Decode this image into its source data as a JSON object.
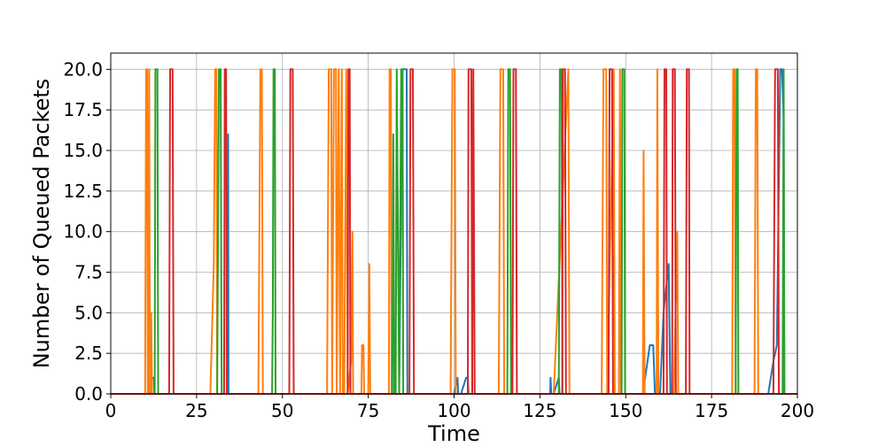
{
  "chart_data": {
    "type": "line",
    "title": "",
    "xlabel": "Time",
    "ylabel": "Number of Queued Packets",
    "xlim": [
      0,
      200
    ],
    "ylim": [
      0,
      21
    ],
    "xticks": [
      "0",
      "25",
      "50",
      "75",
      "100",
      "125",
      "150",
      "175",
      "200"
    ],
    "yticks": [
      "0.0",
      "2.5",
      "5.0",
      "7.5",
      "10.0",
      "12.5",
      "15.0",
      "17.5",
      "20.0"
    ],
    "grid": true,
    "legend": "none",
    "series": [
      {
        "color": "#1f77b4",
        "points": [
          [
            0,
            0
          ],
          [
            11.9,
            0
          ],
          [
            12,
            1
          ],
          [
            12.6,
            1
          ],
          [
            12.7,
            0
          ],
          [
            34,
            0
          ],
          [
            34.2,
            16
          ],
          [
            34.3,
            0
          ],
          [
            84,
            0
          ],
          [
            84.5,
            10
          ],
          [
            85,
            20
          ],
          [
            86.2,
            20
          ],
          [
            86.4,
            0
          ],
          [
            100,
            0
          ],
          [
            101,
            1
          ],
          [
            101.2,
            0
          ],
          [
            102,
            0
          ],
          [
            103.5,
            1
          ],
          [
            104,
            1
          ],
          [
            104.2,
            0
          ],
          [
            128,
            0
          ],
          [
            128.1,
            1
          ],
          [
            128.3,
            0
          ],
          [
            129,
            0
          ],
          [
            130.5,
            1
          ],
          [
            130.7,
            0
          ],
          [
            155,
            0
          ],
          [
            157,
            3
          ],
          [
            158,
            3
          ],
          [
            158.5,
            0
          ],
          [
            160,
            0
          ],
          [
            161,
            5
          ],
          [
            162.5,
            8
          ],
          [
            163,
            0
          ],
          [
            191.5,
            0
          ],
          [
            193,
            2
          ],
          [
            194,
            3
          ],
          [
            195,
            20
          ],
          [
            195.5,
            20
          ],
          [
            196,
            17
          ],
          [
            196.2,
            0
          ],
          [
            200,
            0
          ]
        ]
      },
      {
        "color": "#ff7f0e",
        "points": [
          [
            0,
            0
          ],
          [
            10,
            0
          ],
          [
            10.3,
            20
          ],
          [
            10.6,
            20
          ],
          [
            10.8,
            0
          ],
          [
            11,
            0
          ],
          [
            11.2,
            20
          ],
          [
            11.4,
            0
          ],
          [
            11.8,
            5
          ],
          [
            12,
            0
          ],
          [
            29,
            0
          ],
          [
            30,
            8
          ],
          [
            30.4,
            20
          ],
          [
            30.8,
            20
          ],
          [
            31,
            0
          ],
          [
            43,
            0
          ],
          [
            43.6,
            20
          ],
          [
            44,
            20
          ],
          [
            44.3,
            0
          ],
          [
            63,
            0
          ],
          [
            63.5,
            20
          ],
          [
            64.2,
            20
          ],
          [
            64.5,
            0
          ],
          [
            65,
            20
          ],
          [
            65.6,
            20
          ],
          [
            65.8,
            0
          ],
          [
            66.4,
            20
          ],
          [
            66.8,
            0
          ],
          [
            67.3,
            20
          ],
          [
            67.6,
            0
          ],
          [
            68,
            0
          ],
          [
            68.6,
            20
          ],
          [
            69,
            0
          ],
          [
            70,
            2
          ],
          [
            70.4,
            10
          ],
          [
            70.6,
            0
          ],
          [
            73,
            0
          ],
          [
            73.2,
            3
          ],
          [
            73.6,
            3
          ],
          [
            73.8,
            0
          ],
          [
            75,
            0
          ],
          [
            75.3,
            8
          ],
          [
            75.6,
            0
          ],
          [
            81,
            0
          ],
          [
            81.2,
            20
          ],
          [
            81.6,
            20
          ],
          [
            81.8,
            0
          ],
          [
            99,
            0
          ],
          [
            99.5,
            20
          ],
          [
            100.2,
            20
          ],
          [
            100.5,
            0
          ],
          [
            113,
            0
          ],
          [
            113.5,
            20
          ],
          [
            114.3,
            20
          ],
          [
            114.6,
            0
          ],
          [
            128,
            0
          ],
          [
            129,
            0
          ],
          [
            133.3,
            20
          ],
          [
            133.6,
            0
          ],
          [
            143,
            0
          ],
          [
            143.5,
            20
          ],
          [
            144.3,
            20
          ],
          [
            144.6,
            0
          ],
          [
            146.5,
            20
          ],
          [
            146.8,
            0
          ],
          [
            148,
            0
          ],
          [
            148.3,
            20
          ],
          [
            148.6,
            0
          ],
          [
            155,
            0
          ],
          [
            155.2,
            15
          ],
          [
            155.5,
            0
          ],
          [
            159,
            0
          ],
          [
            159.2,
            20
          ],
          [
            159.5,
            0
          ],
          [
            160.3,
            0
          ],
          [
            164,
            0
          ],
          [
            165,
            10
          ],
          [
            165.3,
            0
          ],
          [
            181,
            0
          ],
          [
            181.3,
            20
          ],
          [
            181.7,
            20
          ],
          [
            182,
            0
          ],
          [
            187.5,
            0
          ],
          [
            187.9,
            20
          ],
          [
            188.3,
            20
          ],
          [
            188.6,
            0
          ],
          [
            200,
            0
          ]
        ]
      },
      {
        "color": "#2ca02c",
        "points": [
          [
            0,
            0
          ],
          [
            12.8,
            0
          ],
          [
            13,
            20
          ],
          [
            13.6,
            20
          ],
          [
            13.8,
            0
          ],
          [
            31,
            0
          ],
          [
            31.2,
            8
          ],
          [
            31.5,
            20
          ],
          [
            32,
            20
          ],
          [
            32.3,
            0
          ],
          [
            47,
            0
          ],
          [
            47.2,
            5
          ],
          [
            47.4,
            20
          ],
          [
            47.8,
            20
          ],
          [
            48,
            0
          ],
          [
            82,
            0
          ],
          [
            82.3,
            16
          ],
          [
            82.6,
            0
          ],
          [
            83,
            0
          ],
          [
            83.3,
            20
          ],
          [
            84,
            0
          ],
          [
            84.6,
            20
          ],
          [
            85,
            20
          ],
          [
            85.2,
            0
          ],
          [
            115.5,
            0
          ],
          [
            115.8,
            20
          ],
          [
            116.3,
            20
          ],
          [
            116.6,
            0
          ],
          [
            130.5,
            0
          ],
          [
            130.8,
            20
          ],
          [
            131.3,
            20
          ],
          [
            131.6,
            0
          ],
          [
            148.8,
            0
          ],
          [
            149,
            20
          ],
          [
            149.6,
            20
          ],
          [
            149.8,
            0
          ],
          [
            182,
            0
          ],
          [
            182.3,
            20
          ],
          [
            182.6,
            20
          ],
          [
            182.8,
            0
          ],
          [
            195.7,
            0
          ],
          [
            196,
            20
          ],
          [
            196.2,
            0
          ],
          [
            200,
            0
          ]
        ]
      },
      {
        "color": "#d62728",
        "points": [
          [
            0,
            0
          ],
          [
            17,
            0
          ],
          [
            17.3,
            20
          ],
          [
            18,
            20
          ],
          [
            18.3,
            0
          ],
          [
            33,
            0
          ],
          [
            33.2,
            20
          ],
          [
            33.6,
            20
          ],
          [
            33.8,
            0
          ],
          [
            52,
            0
          ],
          [
            52.3,
            20
          ],
          [
            53,
            20
          ],
          [
            53.3,
            0
          ],
          [
            69,
            0
          ],
          [
            69.2,
            20
          ],
          [
            69.6,
            20
          ],
          [
            69.8,
            0
          ],
          [
            87,
            0
          ],
          [
            87.3,
            20
          ],
          [
            88,
            20
          ],
          [
            88.3,
            0
          ],
          [
            104,
            0
          ],
          [
            104.2,
            20
          ],
          [
            105,
            20
          ],
          [
            105.3,
            0
          ],
          [
            105.6,
            20
          ],
          [
            106,
            0
          ],
          [
            117,
            0
          ],
          [
            117.3,
            20
          ],
          [
            118,
            20
          ],
          [
            118.3,
            0
          ],
          [
            131.5,
            0
          ],
          [
            131.7,
            20
          ],
          [
            132.3,
            20
          ],
          [
            132.6,
            0
          ],
          [
            145,
            0
          ],
          [
            145.3,
            20
          ],
          [
            146,
            20
          ],
          [
            146.3,
            0
          ],
          [
            161,
            0
          ],
          [
            161.3,
            20
          ],
          [
            161.8,
            20
          ],
          [
            162,
            0
          ],
          [
            163.5,
            0
          ],
          [
            163.7,
            20
          ],
          [
            164.3,
            20
          ],
          [
            164.6,
            0
          ],
          [
            167.5,
            0
          ],
          [
            167.8,
            20
          ],
          [
            168.4,
            20
          ],
          [
            168.6,
            0
          ],
          [
            193,
            0
          ],
          [
            193.5,
            20
          ],
          [
            194.3,
            20
          ],
          [
            194.6,
            0
          ],
          [
            200,
            0
          ]
        ]
      }
    ]
  }
}
